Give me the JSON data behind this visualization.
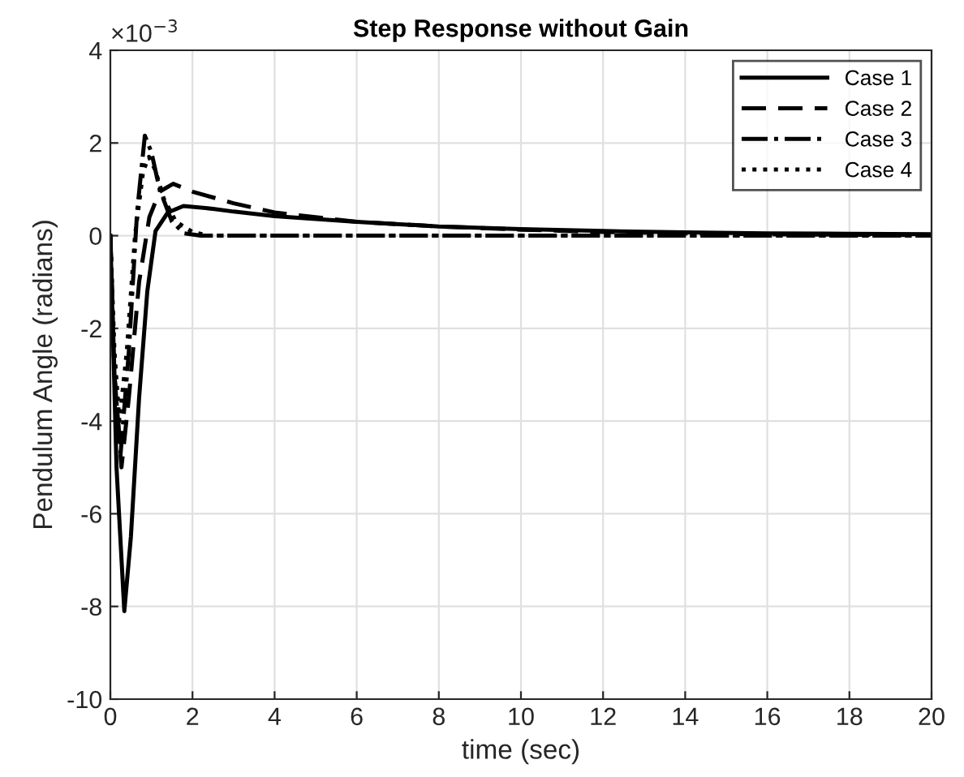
{
  "chart_data": {
    "type": "line",
    "title": "Step Response without Gain",
    "xlabel": "time (sec)",
    "ylabel": "Pendulum Angle (radians)",
    "annotations": [
      "×10$^{−3}$"
    ],
    "xlim": [
      0,
      20
    ],
    "xticks": [
      0,
      2,
      4,
      6,
      8,
      10,
      12,
      14,
      16,
      18,
      20
    ],
    "ylim": [
      -10,
      4
    ],
    "yticks": [
      -10,
      -8,
      -6,
      -4,
      -2,
      0,
      2,
      4
    ],
    "grid": true,
    "legend": "top right",
    "marker": "none",
    "series": [
      {
        "name": "Case 1",
        "color": "#000000",
        "line_style": "solid",
        "x": [
          0,
          0.15,
          0.34,
          0.5,
          0.7,
          0.9,
          1.1,
          1.4,
          1.78,
          2.5,
          3,
          4,
          6,
          8,
          10,
          12,
          14,
          16,
          18,
          20
        ],
        "values": [
          0,
          -5,
          -8.1,
          -6.5,
          -3.5,
          -1.2,
          0.1,
          0.5,
          0.64,
          0.58,
          0.52,
          0.42,
          0.3,
          0.2,
          0.14,
          0.1,
          0.07,
          0.05,
          0.04,
          0.03
        ]
      },
      {
        "name": "Case 2",
        "color": "#000000",
        "line_style": "dashed",
        "x": [
          0,
          0.1,
          0.27,
          0.45,
          0.7,
          0.95,
          1.2,
          1.53,
          2,
          3,
          4,
          6,
          8,
          10,
          12,
          14,
          16,
          18,
          20
        ],
        "values": [
          0,
          -3,
          -5.0,
          -3.5,
          -1,
          0.4,
          0.95,
          1.12,
          0.95,
          0.7,
          0.5,
          0.3,
          0.2,
          0.13,
          0.08,
          0.05,
          0.03,
          0.02,
          0.01
        ]
      },
      {
        "name": "Case 3",
        "color": "#000000",
        "line_style": "dashdot",
        "x": [
          0,
          0.1,
          0.25,
          0.45,
          0.65,
          0.84,
          1.0,
          1.2,
          1.5,
          1.8,
          2.2,
          3,
          6,
          10,
          14,
          20
        ],
        "values": [
          0,
          -3,
          -4.7,
          -2.5,
          0.5,
          2.16,
          1.8,
          1.0,
          0.3,
          0.05,
          0,
          0,
          0,
          0,
          0,
          0
        ]
      },
      {
        "name": "Case 4",
        "color": "#000000",
        "line_style": "dotted",
        "x": [
          0,
          0.1,
          0.22,
          0.4,
          0.6,
          0.8,
          0.94,
          1.1,
          1.3,
          1.6,
          2.0,
          2.4,
          3,
          6,
          10,
          14,
          20
        ],
        "values": [
          0,
          -2.5,
          -4.0,
          -2.5,
          0,
          1.4,
          1.7,
          1.4,
          0.8,
          0.3,
          0.08,
          0,
          0,
          0,
          0,
          0,
          0
        ]
      }
    ]
  }
}
